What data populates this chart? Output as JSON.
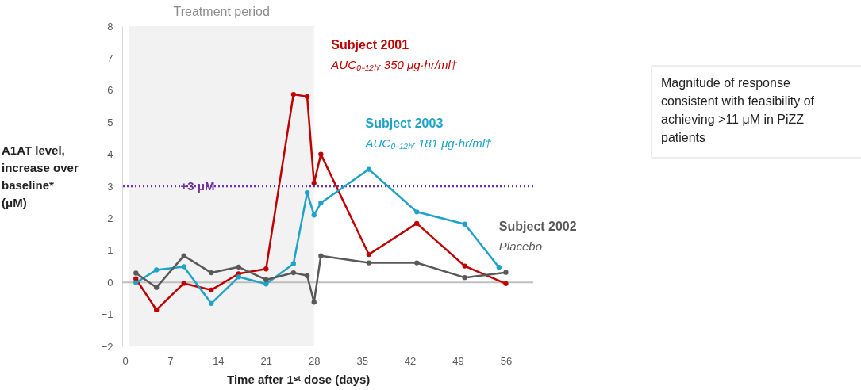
{
  "chart_data": {
    "type": "line",
    "xlabel": "Time after 1ˢᵗ dose (days)",
    "ylabel": "A1AT level, increase over baseline* (μM)",
    "xlim": [
      0,
      60
    ],
    "xticks": [
      0,
      7,
      14,
      21,
      28,
      35,
      42,
      49,
      56
    ],
    "ylim": [
      -2,
      8
    ],
    "yticks": [
      -2,
      -1,
      0,
      1,
      2,
      3,
      4,
      5,
      6,
      7,
      8
    ],
    "grid": false,
    "legend": false,
    "marker": "circle",
    "line_style": "solid",
    "series": [
      {
        "name": "Subject 2001",
        "color": "#c00000",
        "x": [
          2,
          5,
          9,
          13,
          17,
          21,
          25,
          27,
          28,
          29,
          36,
          43,
          50,
          56
        ],
        "values": [
          0.11,
          -0.86,
          -0.03,
          -0.24,
          0.27,
          0.42,
          5.87,
          5.8,
          3.1,
          4.0,
          0.87,
          1.84,
          0.51,
          -0.04
        ]
      },
      {
        "name": "Subject 2003",
        "color": "#1fa2c8",
        "x": [
          2,
          5,
          9,
          13,
          17,
          21,
          25,
          27,
          28,
          29,
          36,
          43,
          50,
          55
        ],
        "values": [
          -0.01,
          0.39,
          0.49,
          -0.66,
          0.17,
          -0.05,
          0.58,
          2.8,
          2.1,
          2.48,
          3.53,
          2.2,
          1.82,
          0.47
        ]
      },
      {
        "name": "Subject 2002",
        "color": "#595959",
        "x": [
          2,
          5,
          9,
          13,
          17,
          21,
          25,
          27,
          28,
          29,
          36,
          43,
          50,
          56
        ],
        "values": [
          0.29,
          -0.16,
          0.83,
          0.3,
          0.48,
          0.08,
          0.3,
          0.21,
          -0.62,
          0.83,
          0.61,
          0.61,
          0.15,
          0.31
        ]
      }
    ],
    "ref_lines": [
      {
        "axis": "y",
        "value": 3,
        "label": "+3 μM",
        "color": "#7030a0",
        "line_style": "dotted"
      },
      {
        "axis": "y",
        "value": 0,
        "color": "#bfbfbf",
        "line_style": "solid"
      }
    ],
    "bands": [
      {
        "axis": "x",
        "from": 1,
        "to": 28,
        "label": "Treatment period",
        "color": "#f2f2f2"
      }
    ],
    "annotations": [
      "AUC₀₋₁₂ₕᵣ 350 μg·hr/ml†",
      "AUC₀₋₁₂ₕᵣ 181 μg·hr/ml†",
      "Placebo",
      "Magnitude of response consistent with feasibility of achieving >11 μM in PiZZ patients"
    ]
  }
}
